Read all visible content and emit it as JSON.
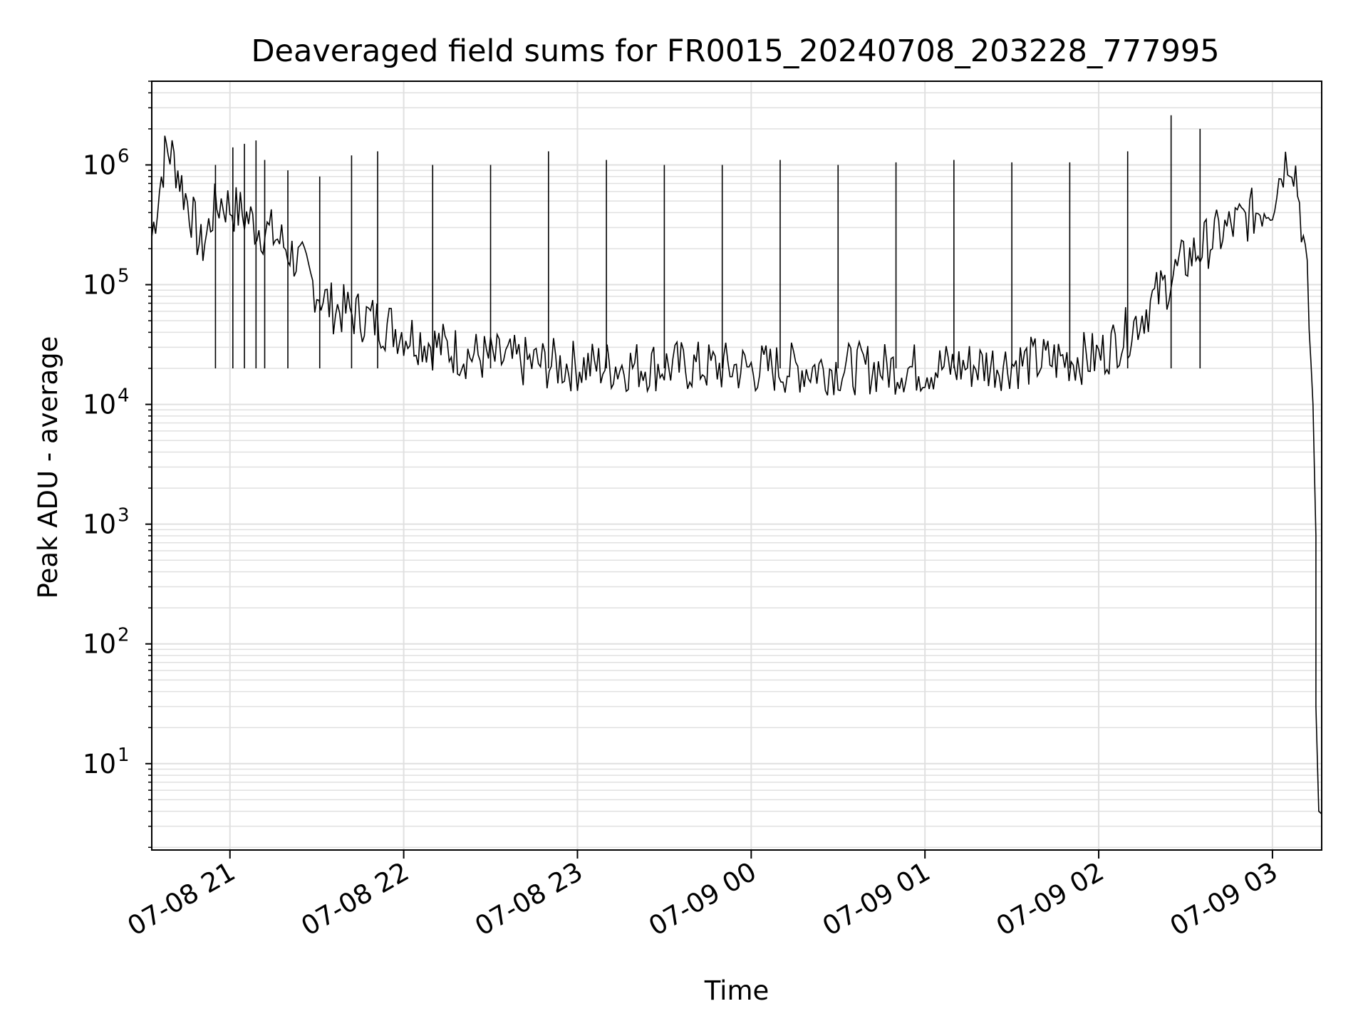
{
  "chart_data": {
    "type": "line",
    "title": "Deaveraged field sums for FR0015_20240708_203228_777995",
    "xlabel": "Time",
    "ylabel": "Peak ADU - average",
    "y_scale": "log",
    "ylim": [
      1.9,
      5000000
    ],
    "xlim": [
      "2024-07-08 20:33",
      "2024-07-09 03:17"
    ],
    "grid": true,
    "x_ticks": [
      "07-08 21",
      "07-08 22",
      "07-08 23",
      "07-09 00",
      "07-09 01",
      "07-09 02",
      "07-09 03"
    ],
    "y_ticks": [
      {
        "base": "10",
        "exp": "1"
      },
      {
        "base": "10",
        "exp": "2"
      },
      {
        "base": "10",
        "exp": "3"
      },
      {
        "base": "10",
        "exp": "4"
      },
      {
        "base": "10",
        "exp": "5"
      },
      {
        "base": "10",
        "exp": "6"
      }
    ],
    "series": [
      {
        "color": "#000000",
        "x": [
          "2024-07-08 20:33",
          "2024-07-08 20:35",
          "2024-07-08 20:37",
          "2024-07-08 20:38",
          "2024-07-08 20:40",
          "2024-07-08 20:42",
          "2024-07-08 20:44",
          "2024-07-08 20:46",
          "2024-07-08 20:48",
          "2024-07-08 20:50",
          "2024-07-08 20:52",
          "2024-07-08 20:54",
          "2024-07-08 20:57",
          "2024-07-08 21:00",
          "2024-07-08 21:05",
          "2024-07-08 21:10",
          "2024-07-08 21:15",
          "2024-07-08 21:20",
          "2024-07-08 21:25",
          "2024-07-08 21:30",
          "2024-07-08 21:35",
          "2024-07-08 21:40",
          "2024-07-08 21:45",
          "2024-07-08 21:50",
          "2024-07-08 21:55",
          "2024-07-08 22:00",
          "2024-07-08 22:10",
          "2024-07-08 22:20",
          "2024-07-08 22:30",
          "2024-07-08 22:45",
          "2024-07-08 23:00",
          "2024-07-08 23:30",
          "2024-07-09 00:00",
          "2024-07-09 00:30",
          "2024-07-09 01:00",
          "2024-07-09 01:30",
          "2024-07-09 02:00",
          "2024-07-09 02:10",
          "2024-07-09 02:20",
          "2024-07-09 02:30",
          "2024-07-09 02:40",
          "2024-07-09 02:50",
          "2024-07-09 03:00",
          "2024-07-09 03:03",
          "2024-07-09 03:06",
          "2024-07-09 03:08",
          "2024-07-09 03:10",
          "2024-07-09 03:12",
          "2024-07-09 03:14",
          "2024-07-09 03:15",
          "2024-07-09 03:15.5",
          "2024-07-09 03:16",
          "2024-07-09 03:17"
        ],
        "y": [
          250000,
          500000,
          1000000,
          1400000,
          1200000,
          900000,
          600000,
          450000,
          300000,
          200000,
          260000,
          400000,
          500000,
          450000,
          380000,
          300000,
          260000,
          200000,
          140000,
          90000,
          65000,
          60000,
          55000,
          50000,
          45000,
          40000,
          32000,
          27000,
          24000,
          22000,
          21000,
          21000,
          20000,
          20000,
          20000,
          22000,
          25000,
          40000,
          80000,
          160000,
          250000,
          350000,
          500000,
          900000,
          1250000,
          900000,
          350000,
          100000,
          10000,
          800,
          30,
          4,
          3.8
        ]
      }
    ],
    "spikes": {
      "x": [
        "2024-07-08 20:55",
        "2024-07-08 21:01",
        "2024-07-08 21:05",
        "2024-07-08 21:09",
        "2024-07-08 21:12",
        "2024-07-08 21:20",
        "2024-07-08 21:31",
        "2024-07-08 21:42",
        "2024-07-08 21:51",
        "2024-07-08 22:10",
        "2024-07-08 22:30",
        "2024-07-08 22:50",
        "2024-07-08 23:10",
        "2024-07-08 23:30",
        "2024-07-08 23:50",
        "2024-07-09 00:10",
        "2024-07-09 00:30",
        "2024-07-09 00:50",
        "2024-07-09 01:10",
        "2024-07-09 01:30",
        "2024-07-09 01:50",
        "2024-07-09 02:10",
        "2024-07-09 02:25",
        "2024-07-09 02:35"
      ],
      "y": [
        1000000,
        1400000,
        1500000,
        1600000,
        1100000,
        900000,
        800000,
        1200000,
        1300000,
        1000000,
        1000000,
        1300000,
        1100000,
        1000000,
        1000000,
        1100000,
        1000000,
        1050000,
        1100000,
        1050000,
        1050000,
        1300000,
        2600000,
        2000000
      ]
    }
  }
}
